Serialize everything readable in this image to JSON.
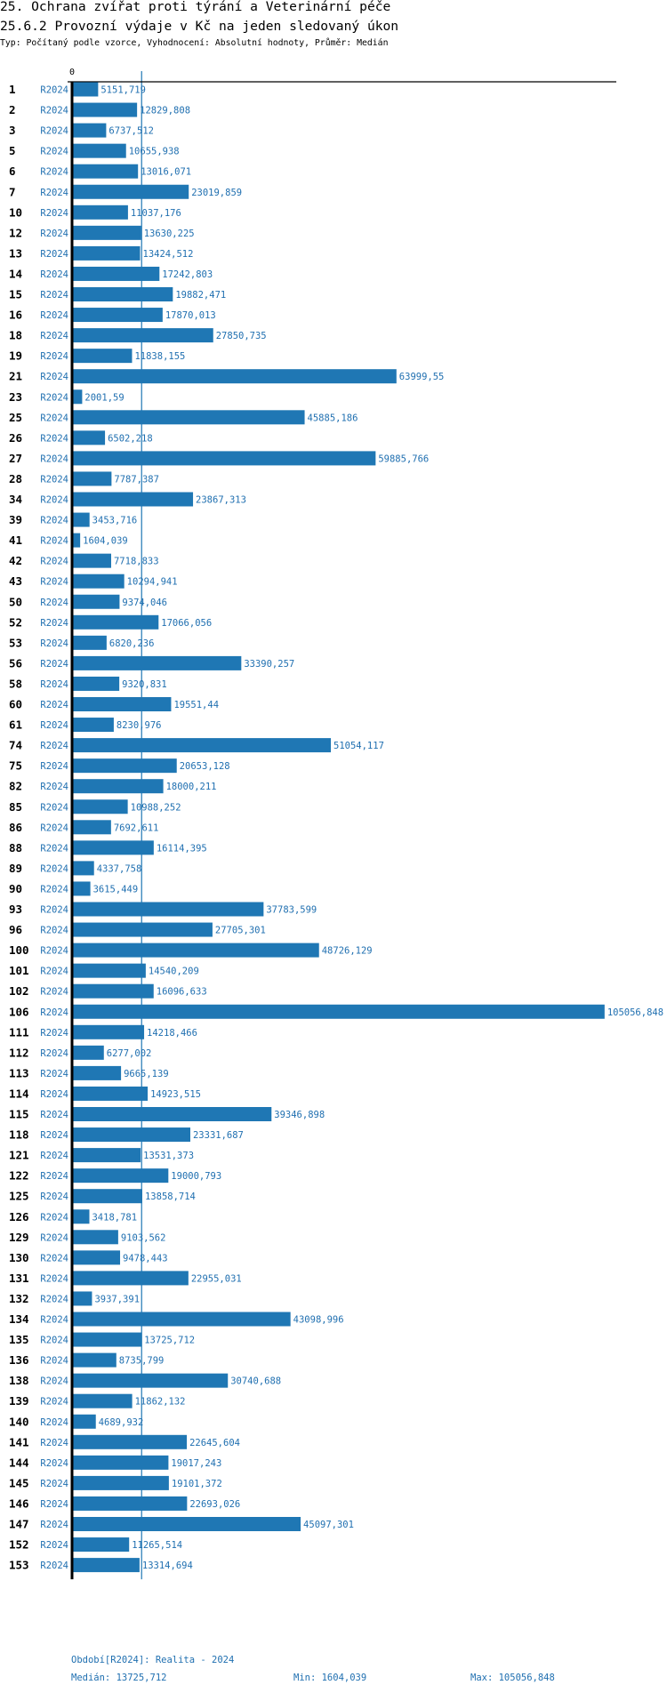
{
  "header": {
    "title": "25. Ochrana zvířat proti týrání a Veterinární péče",
    "subtitle": "25.6.2 Provozní výdaje v Kč na jeden sledovaný úkon",
    "meta": "Typ: Počítaný podle vzorce, Vyhodnocení: Absolutní hodnoty, Průměr: Medián"
  },
  "footer": {
    "period": "Období[R2024]: Realita - 2024",
    "median": "Medián: 13725,712",
    "min": "Min: 1604,039",
    "max": "Max: 105056,848"
  },
  "chart_data": {
    "type": "bar",
    "orientation": "horizontal",
    "x_tick_labels": [
      "0"
    ],
    "series_label": "R2024",
    "reference_line": {
      "type": "median",
      "value": 13725.712
    },
    "colors": {
      "bar": "#1f77b4",
      "text": "#1f6fb0",
      "axis": "#000000"
    },
    "categories": [
      "1",
      "2",
      "3",
      "5",
      "6",
      "7",
      "10",
      "12",
      "13",
      "14",
      "15",
      "16",
      "18",
      "19",
      "21",
      "23",
      "25",
      "26",
      "27",
      "28",
      "34",
      "39",
      "41",
      "42",
      "43",
      "50",
      "52",
      "53",
      "56",
      "58",
      "60",
      "61",
      "74",
      "75",
      "82",
      "85",
      "86",
      "88",
      "89",
      "90",
      "93",
      "96",
      "100",
      "101",
      "102",
      "106",
      "111",
      "112",
      "113",
      "114",
      "115",
      "118",
      "121",
      "122",
      "125",
      "126",
      "129",
      "130",
      "131",
      "132",
      "134",
      "135",
      "136",
      "138",
      "139",
      "140",
      "141",
      "144",
      "145",
      "146",
      "147",
      "152",
      "153"
    ],
    "values": [
      5151.719,
      12829.808,
      6737.512,
      10655.938,
      13016.071,
      23019.859,
      11037.176,
      13630.225,
      13424.512,
      17242.803,
      19882.471,
      17870.013,
      27850.735,
      11838.155,
      63999.55,
      2001.59,
      45885.186,
      6502.218,
      59885.766,
      7787.387,
      23867.313,
      3453.716,
      1604.039,
      7718.833,
      10294.941,
      9374.046,
      17066.056,
      6820.236,
      33390.257,
      9320.831,
      19551.44,
      8230.976,
      51054.117,
      20653.128,
      18000.211,
      10988.252,
      7692.611,
      16114.395,
      4337.758,
      3615.449,
      37783.599,
      27705.301,
      48726.129,
      14540.209,
      16096.633,
      105056.848,
      14218.466,
      6277.002,
      9665.139,
      14923.515,
      39346.898,
      23331.687,
      13531.373,
      19000.793,
      13858.714,
      3418.781,
      9103.562,
      9478.443,
      22955.031,
      3937.391,
      43098.996,
      13725.712,
      8735.799,
      30740.688,
      11862.132,
      4689.932,
      22645.604,
      19017.243,
      19101.372,
      22693.026,
      45097.301,
      11265.514,
      13314.694
    ]
  }
}
